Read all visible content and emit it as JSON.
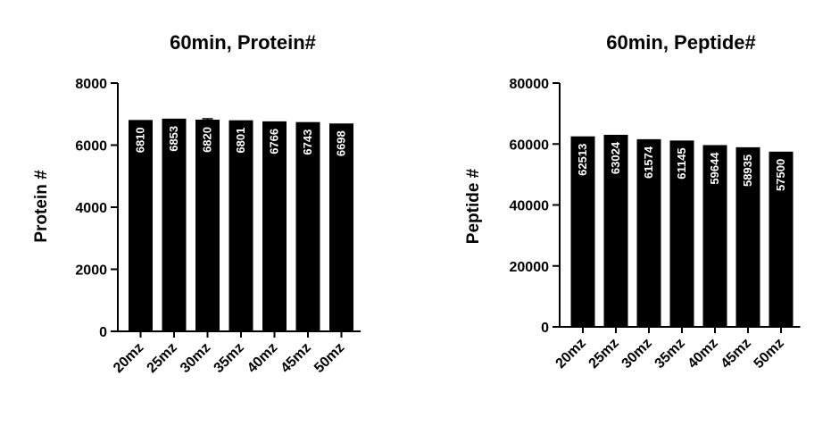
{
  "charts": [
    {
      "type": "bar",
      "title": "60min,  Protein#",
      "xlabel": "",
      "ylabel": "Protein #",
      "categories": [
        "20mz",
        "25mz",
        "30mz",
        "35mz",
        "40mz",
        "45mz",
        "50mz"
      ],
      "values": [
        6810,
        6853,
        6820,
        6801,
        6766,
        6743,
        6698
      ],
      "data_labels": [
        "6810",
        "6853",
        "6820",
        "6801",
        "6766",
        "6743",
        "6698"
      ],
      "error_bars": [
        6810,
        6853,
        6850,
        6801,
        6766,
        6743,
        6698
      ],
      "ylim": [
        0,
        8000
      ],
      "yticks": [
        0,
        2000,
        4000,
        6000,
        8000
      ],
      "ytick_labels": [
        "0",
        "2000",
        "4000",
        "6000",
        "8000"
      ],
      "bar_color": "#000000",
      "label_color": "#ffffff",
      "grid": false
    },
    {
      "type": "bar",
      "title": "60min,  Peptide#",
      "xlabel": "",
      "ylabel": "Peptide #",
      "categories": [
        "20mz",
        "25mz",
        "30mz",
        "35mz",
        "40mz",
        "45mz",
        "50mz"
      ],
      "values": [
        62513,
        63024,
        61574,
        61145,
        59644,
        58935,
        57500
      ],
      "data_labels": [
        "62513",
        "63024",
        "61574",
        "61145",
        "59644",
        "58935",
        "57500"
      ],
      "ylim": [
        0,
        80000
      ],
      "yticks": [
        0,
        20000,
        40000,
        60000,
        80000
      ],
      "ytick_labels": [
        "0",
        "20000",
        "40000",
        "60000",
        "80000"
      ],
      "bar_color": "#000000",
      "label_color": "#ffffff",
      "grid": false
    }
  ]
}
